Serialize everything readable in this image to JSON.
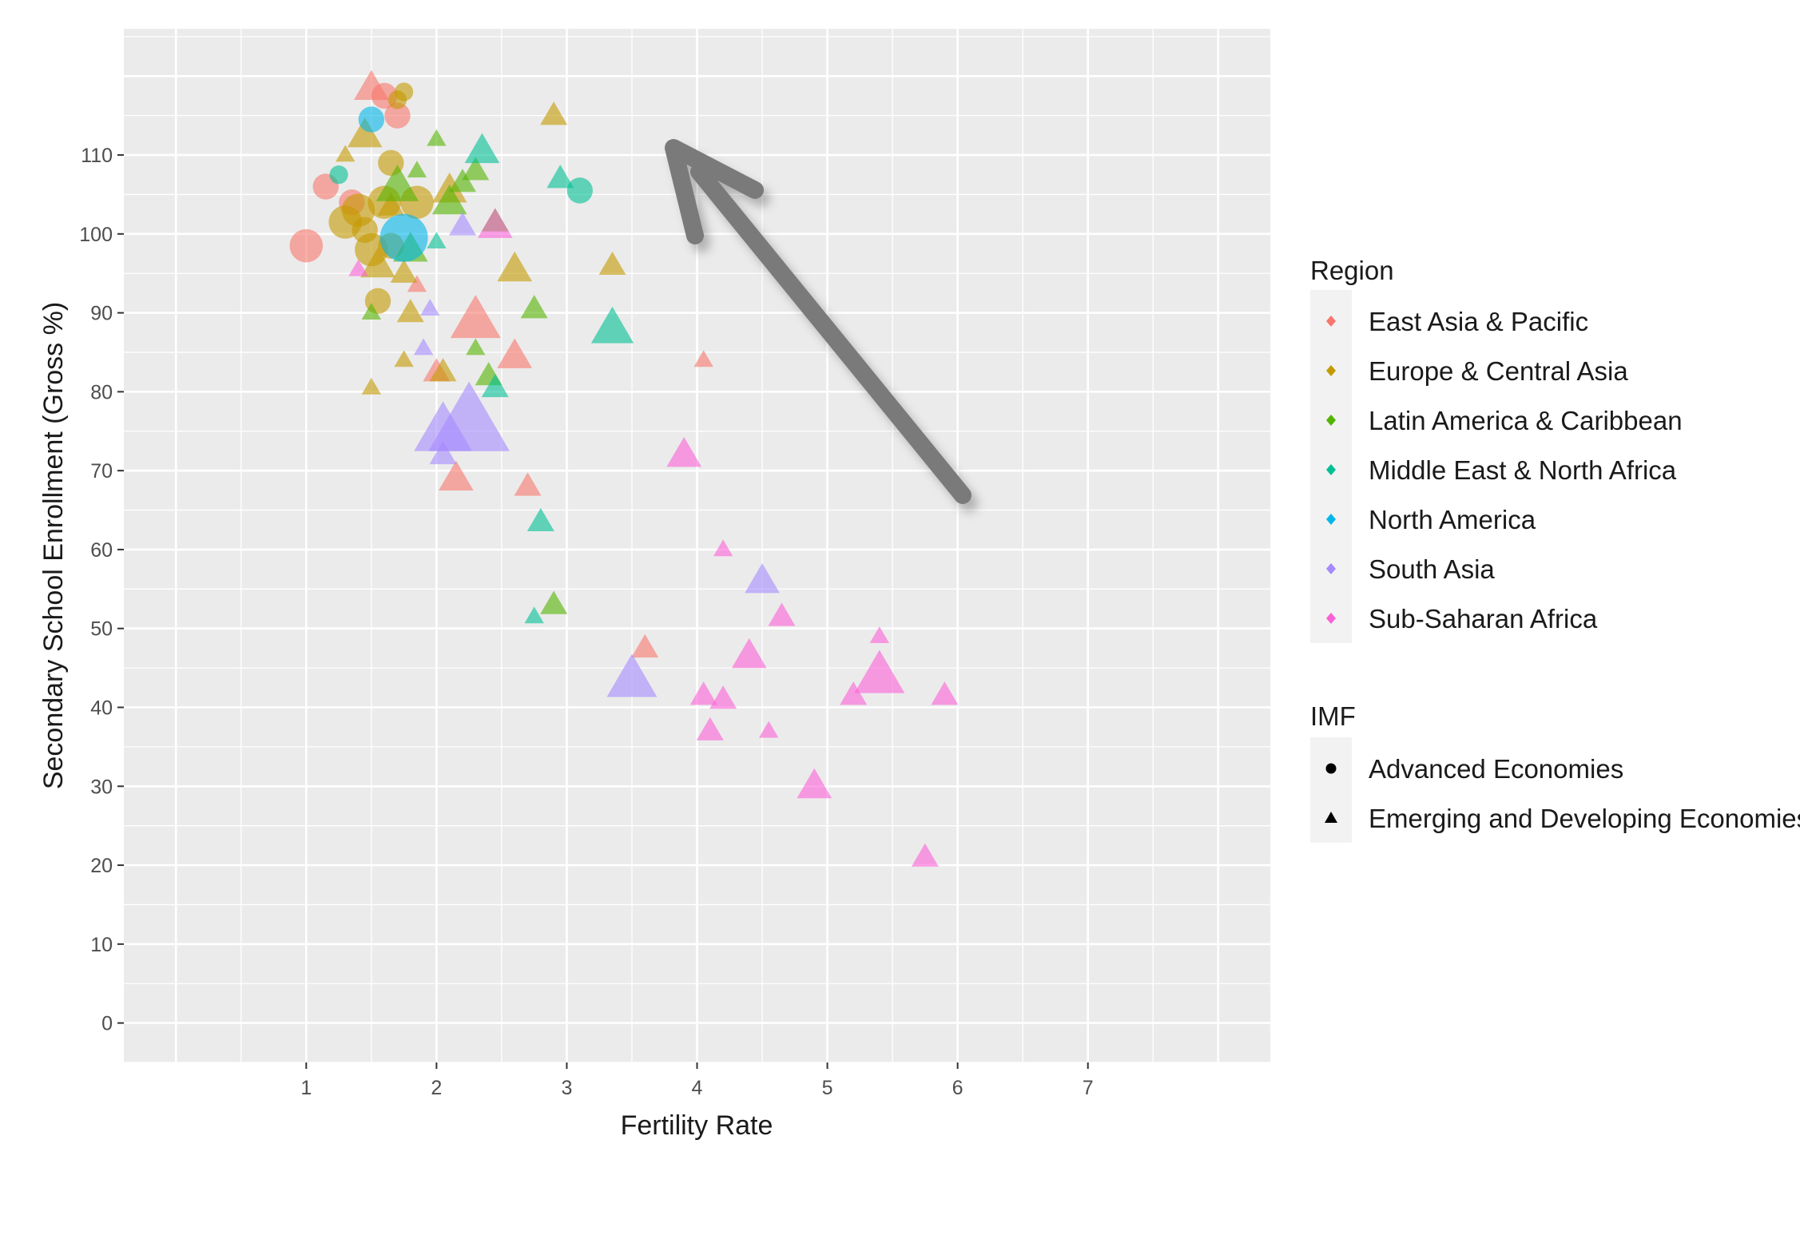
{
  "chart_data": {
    "type": "scatter",
    "xlabel": "Fertility Rate",
    "ylabel": "Secondary School Enrollment (Gross %)",
    "xlim": [
      -0.4,
      8.4
    ],
    "ylim": [
      -5,
      126
    ],
    "x_ticks": [
      1,
      2,
      3,
      4,
      5,
      6,
      7
    ],
    "y_ticks": [
      0,
      10,
      20,
      30,
      40,
      50,
      60,
      70,
      80,
      90,
      100,
      110
    ],
    "grid": true,
    "legend_position": "right",
    "size_encodes": "population (size legend not shown)",
    "annotation": "gray arrow pointing from lower-right toward upper-left",
    "legends": [
      {
        "title": "Region",
        "kind": "color",
        "items": [
          {
            "label": "East Asia & Pacific",
            "color": "#F8766D"
          },
          {
            "label": "Europe & Central Asia",
            "color": "#C49A00"
          },
          {
            "label": "Latin America & Caribbean",
            "color": "#53B400"
          },
          {
            "label": "Middle East & North Africa",
            "color": "#00C094"
          },
          {
            "label": "North America",
            "color": "#00B6EB"
          },
          {
            "label": "South Asia",
            "color": "#A58AFF"
          },
          {
            "label": "Sub-Saharan Africa",
            "color": "#FB61D7"
          }
        ]
      },
      {
        "title": "IMF",
        "kind": "shape",
        "items": [
          {
            "label": "Advanced Economies",
            "shape": "circle"
          },
          {
            "label": "Emerging and Developing Economies",
            "shape": "triangle"
          }
        ]
      }
    ],
    "series": [
      {
        "name": "East Asia & Pacific",
        "color": "#F8766D",
        "points": [
          {
            "x": 1.0,
            "y": 98.5,
            "shape": "circle",
            "size": 3
          },
          {
            "x": 1.15,
            "y": 106,
            "shape": "circle",
            "size": 2
          },
          {
            "x": 1.35,
            "y": 104,
            "shape": "circle",
            "size": 2
          },
          {
            "x": 1.5,
            "y": 118.5,
            "shape": "triangle",
            "size": 3
          },
          {
            "x": 1.6,
            "y": 117.5,
            "shape": "circle",
            "size": 2
          },
          {
            "x": 1.7,
            "y": 115,
            "shape": "circle",
            "size": 2
          },
          {
            "x": 1.85,
            "y": 93.5,
            "shape": "triangle",
            "size": 1
          },
          {
            "x": 2.0,
            "y": 82.5,
            "shape": "triangle",
            "size": 2
          },
          {
            "x": 2.15,
            "y": 69,
            "shape": "triangle",
            "size": 3
          },
          {
            "x": 2.3,
            "y": 89,
            "shape": "triangle",
            "size": 5
          },
          {
            "x": 2.6,
            "y": 84.5,
            "shape": "triangle",
            "size": 3
          },
          {
            "x": 2.7,
            "y": 68,
            "shape": "triangle",
            "size": 2
          },
          {
            "x": 3.6,
            "y": 47.5,
            "shape": "triangle",
            "size": 2
          },
          {
            "x": 4.05,
            "y": 84,
            "shape": "triangle",
            "size": 1
          }
        ]
      },
      {
        "name": "Europe & Central Asia",
        "color": "#C49A00",
        "points": [
          {
            "x": 1.3,
            "y": 101.5,
            "shape": "circle",
            "size": 3
          },
          {
            "x": 1.4,
            "y": 103,
            "shape": "circle",
            "size": 3
          },
          {
            "x": 1.45,
            "y": 100.5,
            "shape": "circle",
            "size": 2
          },
          {
            "x": 1.5,
            "y": 98,
            "shape": "circle",
            "size": 3
          },
          {
            "x": 1.55,
            "y": 96,
            "shape": "triangle",
            "size": 3
          },
          {
            "x": 1.6,
            "y": 104,
            "shape": "circle",
            "size": 3
          },
          {
            "x": 1.65,
            "y": 109,
            "shape": "circle",
            "size": 2
          },
          {
            "x": 1.75,
            "y": 118,
            "shape": "circle",
            "size": 1
          },
          {
            "x": 1.55,
            "y": 91.5,
            "shape": "circle",
            "size": 2
          },
          {
            "x": 1.45,
            "y": 112.5,
            "shape": "triangle",
            "size": 3
          },
          {
            "x": 1.3,
            "y": 110,
            "shape": "triangle",
            "size": 1
          },
          {
            "x": 1.5,
            "y": 80.5,
            "shape": "triangle",
            "size": 1
          },
          {
            "x": 1.65,
            "y": 103.5,
            "shape": "triangle",
            "size": 2
          },
          {
            "x": 1.75,
            "y": 95,
            "shape": "triangle",
            "size": 2
          },
          {
            "x": 1.7,
            "y": 117,
            "shape": "circle",
            "size": 1
          },
          {
            "x": 1.8,
            "y": 90,
            "shape": "triangle",
            "size": 2
          },
          {
            "x": 1.85,
            "y": 104,
            "shape": "circle",
            "size": 3
          },
          {
            "x": 1.65,
            "y": 98.5,
            "shape": "circle",
            "size": 2
          },
          {
            "x": 1.75,
            "y": 84,
            "shape": "triangle",
            "size": 1
          },
          {
            "x": 2.05,
            "y": 82.5,
            "shape": "triangle",
            "size": 2
          },
          {
            "x": 2.1,
            "y": 105.5,
            "shape": "triangle",
            "size": 3
          },
          {
            "x": 2.6,
            "y": 95.5,
            "shape": "triangle",
            "size": 3
          },
          {
            "x": 2.9,
            "y": 115,
            "shape": "triangle",
            "size": 2
          },
          {
            "x": 3.35,
            "y": 96,
            "shape": "triangle",
            "size": 2
          }
        ]
      },
      {
        "name": "Latin America & Caribbean",
        "color": "#53B400",
        "points": [
          {
            "x": 1.5,
            "y": 90,
            "shape": "triangle",
            "size": 1
          },
          {
            "x": 1.7,
            "y": 106,
            "shape": "triangle",
            "size": 4
          },
          {
            "x": 1.85,
            "y": 108,
            "shape": "triangle",
            "size": 1
          },
          {
            "x": 1.8,
            "y": 98,
            "shape": "triangle",
            "size": 3
          },
          {
            "x": 2.0,
            "y": 112,
            "shape": "triangle",
            "size": 1
          },
          {
            "x": 2.1,
            "y": 104,
            "shape": "triangle",
            "size": 3
          },
          {
            "x": 2.2,
            "y": 106.5,
            "shape": "triangle",
            "size": 2
          },
          {
            "x": 2.3,
            "y": 108,
            "shape": "triangle",
            "size": 2
          },
          {
            "x": 2.3,
            "y": 85.5,
            "shape": "triangle",
            "size": 1
          },
          {
            "x": 2.4,
            "y": 82,
            "shape": "triangle",
            "size": 2
          },
          {
            "x": 2.45,
            "y": 101.5,
            "shape": "triangle",
            "size": 2
          },
          {
            "x": 2.75,
            "y": 90.5,
            "shape": "triangle",
            "size": 2
          },
          {
            "x": 2.9,
            "y": 53,
            "shape": "triangle",
            "size": 2
          }
        ]
      },
      {
        "name": "Middle East & North Africa",
        "color": "#00C094",
        "points": [
          {
            "x": 1.25,
            "y": 107.5,
            "shape": "circle",
            "size": 1
          },
          {
            "x": 2.0,
            "y": 99,
            "shape": "triangle",
            "size": 1
          },
          {
            "x": 2.35,
            "y": 110.5,
            "shape": "triangle",
            "size": 3
          },
          {
            "x": 2.45,
            "y": 80.5,
            "shape": "triangle",
            "size": 2
          },
          {
            "x": 2.75,
            "y": 51.5,
            "shape": "triangle",
            "size": 1
          },
          {
            "x": 2.8,
            "y": 63.5,
            "shape": "triangle",
            "size": 2
          },
          {
            "x": 2.95,
            "y": 107,
            "shape": "triangle",
            "size": 2
          },
          {
            "x": 3.1,
            "y": 105.5,
            "shape": "circle",
            "size": 2
          },
          {
            "x": 3.35,
            "y": 88,
            "shape": "triangle",
            "size": 4
          }
        ]
      },
      {
        "name": "North America",
        "color": "#00B6EB",
        "points": [
          {
            "x": 1.5,
            "y": 114.5,
            "shape": "circle",
            "size": 2
          },
          {
            "x": 1.75,
            "y": 99.5,
            "shape": "circle",
            "size": 5
          }
        ]
      },
      {
        "name": "South Asia",
        "color": "#A58AFF",
        "points": [
          {
            "x": 1.9,
            "y": 85.5,
            "shape": "triangle",
            "size": 1
          },
          {
            "x": 1.95,
            "y": 90.5,
            "shape": "triangle",
            "size": 1
          },
          {
            "x": 2.05,
            "y": 72,
            "shape": "triangle",
            "size": 2
          },
          {
            "x": 2.05,
            "y": 75,
            "shape": "triangle",
            "size": 6
          },
          {
            "x": 2.25,
            "y": 76,
            "shape": "triangle",
            "size": 9
          },
          {
            "x": 2.2,
            "y": 101,
            "shape": "triangle",
            "size": 2
          },
          {
            "x": 3.5,
            "y": 43.5,
            "shape": "triangle",
            "size": 5
          },
          {
            "x": 4.5,
            "y": 56,
            "shape": "triangle",
            "size": 3
          }
        ]
      },
      {
        "name": "Sub-Saharan Africa",
        "color": "#FB61D7",
        "points": [
          {
            "x": 1.4,
            "y": 95.5,
            "shape": "triangle",
            "size": 1
          },
          {
            "x": 2.45,
            "y": 101,
            "shape": "triangle",
            "size": 3
          },
          {
            "x": 3.9,
            "y": 72,
            "shape": "triangle",
            "size": 3
          },
          {
            "x": 4.05,
            "y": 41.5,
            "shape": "triangle",
            "size": 2
          },
          {
            "x": 4.1,
            "y": 37,
            "shape": "triangle",
            "size": 2
          },
          {
            "x": 4.2,
            "y": 60,
            "shape": "triangle",
            "size": 1
          },
          {
            "x": 4.2,
            "y": 41,
            "shape": "triangle",
            "size": 2
          },
          {
            "x": 4.4,
            "y": 46.5,
            "shape": "triangle",
            "size": 3
          },
          {
            "x": 4.55,
            "y": 37,
            "shape": "triangle",
            "size": 1
          },
          {
            "x": 4.65,
            "y": 51.5,
            "shape": "triangle",
            "size": 2
          },
          {
            "x": 4.9,
            "y": 30,
            "shape": "triangle",
            "size": 3
          },
          {
            "x": 5.2,
            "y": 41.5,
            "shape": "triangle",
            "size": 2
          },
          {
            "x": 5.4,
            "y": 49,
            "shape": "triangle",
            "size": 1
          },
          {
            "x": 5.4,
            "y": 44,
            "shape": "triangle",
            "size": 5
          },
          {
            "x": 5.75,
            "y": 21,
            "shape": "triangle",
            "size": 2
          },
          {
            "x": 5.9,
            "y": 41.5,
            "shape": "triangle",
            "size": 2
          }
        ]
      }
    ]
  }
}
